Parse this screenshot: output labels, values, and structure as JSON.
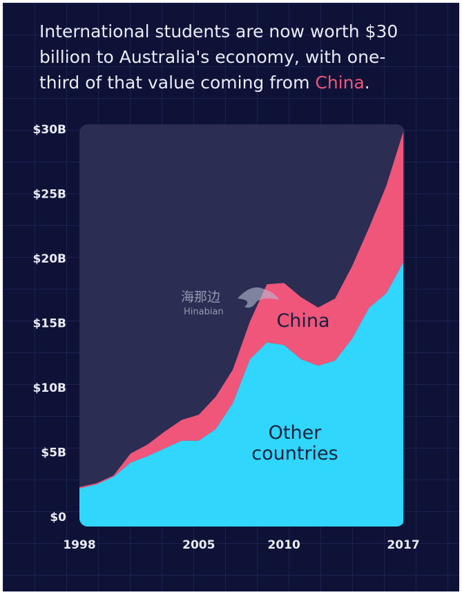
{
  "chart_data": {
    "type": "stacked_area",
    "title_lines": [
      "International students are now worth $30",
      "billion to Australia's economy, with one-",
      "third of that value coming from "
    ],
    "title_highlight": "China",
    "title_end": ".",
    "watermark": [
      "海那边",
      "Hinabian"
    ],
    "x": [
      1998,
      1999,
      2000,
      2001,
      2002,
      2003,
      2004,
      2005,
      2006,
      2007,
      2008,
      2009,
      2010,
      2011,
      2012,
      2013,
      2014,
      2015,
      2016,
      2017
    ],
    "series": [
      {
        "name": "Other countries",
        "color": "#30d6fc",
        "values": [
          2.2,
          2.5,
          3.1,
          4.2,
          4.7,
          5.3,
          5.9,
          5.9,
          6.8,
          8.8,
          12.2,
          13.5,
          13.3,
          12.2,
          11.7,
          12.1,
          13.8,
          16.2,
          17.3,
          19.7
        ]
      },
      {
        "name": "China",
        "color": "#f0567a",
        "values": [
          0.1,
          0.1,
          0.1,
          0.7,
          0.9,
          1.3,
          1.6,
          2.0,
          2.5,
          2.6,
          2.9,
          4.5,
          4.8,
          4.8,
          4.5,
          4.8,
          5.6,
          6.2,
          8.3,
          10.1
        ]
      }
    ],
    "xlim": [
      1998,
      2017
    ],
    "xticks": [
      1998,
      2005,
      2010,
      2017
    ],
    "ylim": [
      0,
      30
    ],
    "yticks": [
      {
        "value": 0,
        "label": "$0"
      },
      {
        "value": 5,
        "label": "$5B"
      },
      {
        "value": 10,
        "label": "$10B"
      },
      {
        "value": 15,
        "label": "$15B"
      },
      {
        "value": 20,
        "label": "$20B"
      },
      {
        "value": 25,
        "label": "$25B"
      },
      {
        "value": 30,
        "label": "$30B"
      }
    ],
    "grid": false
  }
}
